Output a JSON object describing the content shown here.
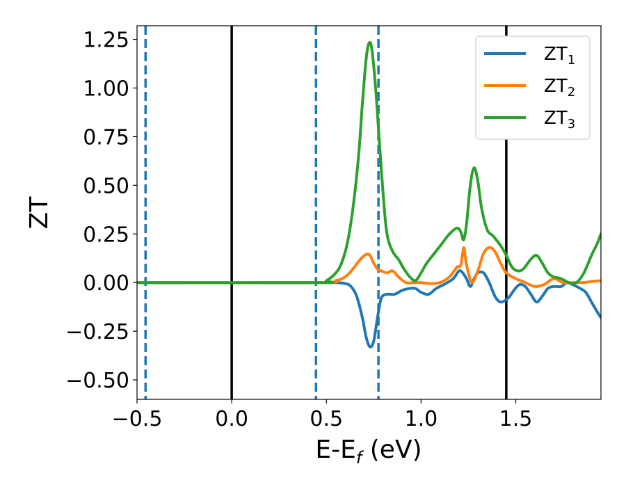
{
  "chart_data": {
    "type": "line",
    "xlabel": "E-E",
    "xlabel_sub": "f",
    "xlabel_unit": " (eV)",
    "ylabel": "ZT",
    "xlim": [
      -0.5,
      1.95
    ],
    "ylim": [
      -0.6,
      1.32
    ],
    "grid": false,
    "legend_position": "top-right",
    "x_ticks": [
      {
        "value": -0.5,
        "label": "−0.5"
      },
      {
        "value": 0.0,
        "label": "0.0"
      },
      {
        "value": 0.5,
        "label": "0.5"
      },
      {
        "value": 1.0,
        "label": "1.0"
      },
      {
        "value": 1.5,
        "label": "1.5"
      }
    ],
    "y_ticks": [
      {
        "value": 1.25,
        "label": "1.25"
      },
      {
        "value": 1.0,
        "label": "1.00"
      },
      {
        "value": 0.75,
        "label": "0.75"
      },
      {
        "value": 0.5,
        "label": "0.50"
      },
      {
        "value": 0.25,
        "label": "0.25"
      },
      {
        "value": 0.0,
        "label": "0.00"
      },
      {
        "value": -0.25,
        "label": "−0.25"
      },
      {
        "value": -0.5,
        "label": "−0.50"
      }
    ],
    "vertical_lines": [
      {
        "x": -0.455,
        "style": "dashed",
        "color": "#1f77b4"
      },
      {
        "x": 0.0,
        "style": "solid",
        "color": "#000000"
      },
      {
        "x": 0.445,
        "style": "dashed",
        "color": "#1f77b4"
      },
      {
        "x": 0.775,
        "style": "dashed",
        "color": "#1f77b4"
      },
      {
        "x": 1.45,
        "style": "solid",
        "color": "#000000"
      }
    ],
    "series": [
      {
        "name": "ZT",
        "name_sub": "1",
        "color": "#1f77b4",
        "points": [
          [
            -0.5,
            0.0
          ],
          [
            0.4,
            0.0
          ],
          [
            0.55,
            0.0
          ],
          [
            0.6,
            -0.005
          ],
          [
            0.63,
            -0.02
          ],
          [
            0.66,
            -0.07
          ],
          [
            0.69,
            -0.18
          ],
          [
            0.71,
            -0.28
          ],
          [
            0.73,
            -0.33
          ],
          [
            0.75,
            -0.3
          ],
          [
            0.77,
            -0.18
          ],
          [
            0.79,
            -0.08
          ],
          [
            0.82,
            -0.06
          ],
          [
            0.86,
            -0.06
          ],
          [
            0.9,
            -0.04
          ],
          [
            0.94,
            -0.03
          ],
          [
            0.97,
            -0.03
          ],
          [
            1.0,
            -0.05
          ],
          [
            1.04,
            -0.06
          ],
          [
            1.08,
            -0.03
          ],
          [
            1.12,
            -0.01
          ],
          [
            1.17,
            0.02
          ],
          [
            1.2,
            0.06
          ],
          [
            1.22,
            0.05
          ],
          [
            1.24,
            0.02
          ],
          [
            1.26,
            -0.02
          ],
          [
            1.28,
            0.02
          ],
          [
            1.3,
            0.05
          ],
          [
            1.33,
            0.05
          ],
          [
            1.36,
            0.0
          ],
          [
            1.39,
            -0.07
          ],
          [
            1.42,
            -0.1
          ],
          [
            1.46,
            -0.08
          ],
          [
            1.49,
            -0.04
          ],
          [
            1.52,
            -0.01
          ],
          [
            1.55,
            -0.02
          ],
          [
            1.58,
            -0.06
          ],
          [
            1.61,
            -0.1
          ],
          [
            1.64,
            -0.07
          ],
          [
            1.67,
            -0.03
          ],
          [
            1.7,
            -0.02
          ],
          [
            1.74,
            -0.02
          ],
          [
            1.77,
            0.0
          ],
          [
            1.8,
            -0.01
          ],
          [
            1.84,
            -0.03
          ],
          [
            1.87,
            -0.05
          ],
          [
            1.9,
            -0.1
          ],
          [
            1.93,
            -0.15
          ],
          [
            1.95,
            -0.18
          ]
        ]
      },
      {
        "name": "ZT",
        "name_sub": "2",
        "color": "#ff7f0e",
        "points": [
          [
            -0.5,
            0.0
          ],
          [
            0.45,
            0.0
          ],
          [
            0.55,
            0.01
          ],
          [
            0.6,
            0.03
          ],
          [
            0.64,
            0.07
          ],
          [
            0.68,
            0.12
          ],
          [
            0.71,
            0.145
          ],
          [
            0.73,
            0.14
          ],
          [
            0.75,
            0.1
          ],
          [
            0.77,
            0.07
          ],
          [
            0.79,
            0.06
          ],
          [
            0.82,
            0.05
          ],
          [
            0.85,
            0.06
          ],
          [
            0.88,
            0.03
          ],
          [
            0.92,
            0.0
          ],
          [
            0.96,
            0.0
          ],
          [
            1.0,
            0.0
          ],
          [
            1.05,
            -0.005
          ],
          [
            1.1,
            0.0
          ],
          [
            1.15,
            0.03
          ],
          [
            1.19,
            0.08
          ],
          [
            1.21,
            0.09
          ],
          [
            1.225,
            0.18
          ],
          [
            1.235,
            0.12
          ],
          [
            1.25,
            0.05
          ],
          [
            1.27,
            0.0
          ],
          [
            1.3,
            0.06
          ],
          [
            1.33,
            0.15
          ],
          [
            1.36,
            0.18
          ],
          [
            1.39,
            0.16
          ],
          [
            1.42,
            0.1
          ],
          [
            1.45,
            0.05
          ],
          [
            1.5,
            0.02
          ],
          [
            1.55,
            0.0
          ],
          [
            1.6,
            -0.02
          ],
          [
            1.65,
            -0.01
          ],
          [
            1.7,
            0.02
          ],
          [
            1.75,
            0.0
          ],
          [
            1.8,
            0.0
          ],
          [
            1.85,
            0.0
          ],
          [
            1.9,
            0.005
          ],
          [
            1.95,
            0.01
          ]
        ]
      },
      {
        "name": "ZT",
        "name_sub": "3",
        "color": "#2ca02c",
        "points": [
          [
            -0.5,
            0.0
          ],
          [
            0.45,
            0.0
          ],
          [
            0.5,
            0.01
          ],
          [
            0.55,
            0.05
          ],
          [
            0.58,
            0.1
          ],
          [
            0.61,
            0.2
          ],
          [
            0.64,
            0.38
          ],
          [
            0.67,
            0.65
          ],
          [
            0.69,
            0.92
          ],
          [
            0.71,
            1.15
          ],
          [
            0.725,
            1.23
          ],
          [
            0.74,
            1.2
          ],
          [
            0.76,
            1.0
          ],
          [
            0.78,
            0.72
          ],
          [
            0.8,
            0.45
          ],
          [
            0.82,
            0.25
          ],
          [
            0.85,
            0.16
          ],
          [
            0.88,
            0.12
          ],
          [
            0.91,
            0.07
          ],
          [
            0.94,
            0.03
          ],
          [
            0.97,
            0.01
          ],
          [
            1.0,
            0.05
          ],
          [
            1.03,
            0.1
          ],
          [
            1.07,
            0.15
          ],
          [
            1.11,
            0.2
          ],
          [
            1.15,
            0.25
          ],
          [
            1.19,
            0.28
          ],
          [
            1.21,
            0.26
          ],
          [
            1.225,
            0.22
          ],
          [
            1.24,
            0.3
          ],
          [
            1.26,
            0.5
          ],
          [
            1.28,
            0.59
          ],
          [
            1.3,
            0.52
          ],
          [
            1.32,
            0.38
          ],
          [
            1.35,
            0.27
          ],
          [
            1.38,
            0.24
          ],
          [
            1.42,
            0.19
          ],
          [
            1.45,
            0.14
          ],
          [
            1.48,
            0.08
          ],
          [
            1.51,
            0.06
          ],
          [
            1.54,
            0.07
          ],
          [
            1.58,
            0.12
          ],
          [
            1.61,
            0.14
          ],
          [
            1.64,
            0.1
          ],
          [
            1.67,
            0.05
          ],
          [
            1.7,
            0.03
          ],
          [
            1.74,
            0.02
          ],
          [
            1.78,
            0.0
          ],
          [
            1.82,
            0.0
          ],
          [
            1.86,
            0.05
          ],
          [
            1.9,
            0.14
          ],
          [
            1.93,
            0.2
          ],
          [
            1.95,
            0.25
          ]
        ]
      }
    ]
  }
}
